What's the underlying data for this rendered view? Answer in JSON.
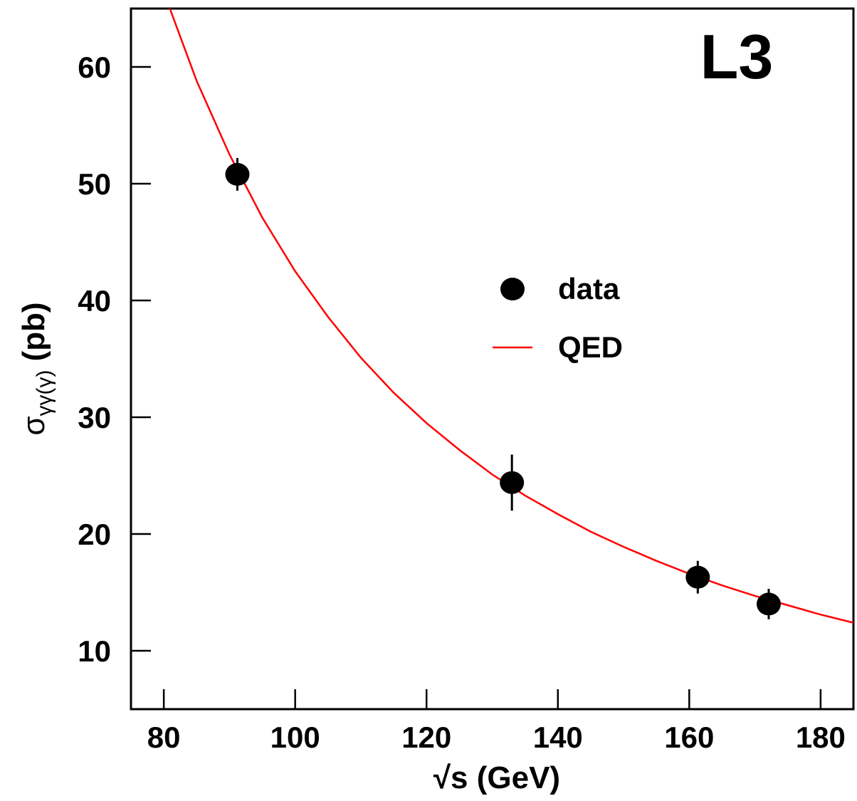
{
  "chart_data": {
    "type": "scatter",
    "experiment_label": "L3",
    "xlabel": "√s (GeV)",
    "ylabel_main": "σ",
    "ylabel_sub": "γγ(γ)",
    "ylabel_unit": "(pb)",
    "xlim": [
      75,
      185
    ],
    "ylim": [
      5,
      65
    ],
    "xticks": [
      80,
      100,
      120,
      140,
      160,
      180
    ],
    "yticks": [
      10,
      20,
      30,
      40,
      50,
      60
    ],
    "grid": false,
    "legend_position": "center-right",
    "series": [
      {
        "name": "data",
        "kind": "points",
        "color": "#000000",
        "points": [
          {
            "x": 91.2,
            "y": 50.8,
            "err": 1.4
          },
          {
            "x": 133,
            "y": 24.4,
            "err": 2.4
          },
          {
            "x": 161.3,
            "y": 16.3,
            "err": 1.4
          },
          {
            "x": 172.1,
            "y": 14.0,
            "err": 1.3
          }
        ]
      },
      {
        "name": "QED",
        "kind": "curve",
        "color": "#ff0000",
        "x": [
          80,
          85,
          90,
          95,
          100,
          105,
          110,
          115,
          120,
          125,
          130,
          135,
          140,
          145,
          150,
          155,
          160,
          165,
          170,
          175,
          180,
          185
        ],
        "y": [
          66.4,
          58.8,
          52.5,
          47.1,
          42.5,
          38.6,
          35.1,
          32.1,
          29.5,
          27.2,
          25.1,
          23.3,
          21.7,
          20.2,
          18.9,
          17.7,
          16.6,
          15.6,
          14.7,
          13.9,
          13.1,
          12.4
        ]
      }
    ]
  }
}
